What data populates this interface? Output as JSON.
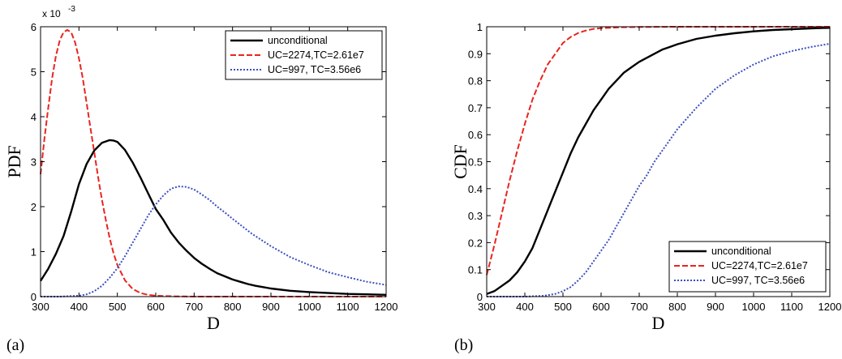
{
  "chart_data": [
    {
      "type": "line",
      "caption": "(a)",
      "xlabel": "D",
      "ylabel": "PDF",
      "y_multiplier": "x 10",
      "y_multiplier_exp": "-3",
      "xlim": [
        300,
        1200
      ],
      "ylim": [
        0,
        6
      ],
      "xticks": [
        "300",
        "400",
        "500",
        "600",
        "700",
        "800",
        "900",
        "1000",
        "1100",
        "1200"
      ],
      "yticks": [
        "0",
        "1",
        "2",
        "3",
        "4",
        "5",
        "6"
      ],
      "legend_position": "top-right",
      "series": [
        {
          "name": "unconditional",
          "color": "#000000",
          "dash": "solid",
          "x": [
            300,
            320,
            340,
            360,
            380,
            400,
            420,
            440,
            460,
            480,
            490,
            500,
            520,
            540,
            560,
            580,
            600,
            620,
            640,
            660,
            680,
            700,
            720,
            740,
            760,
            780,
            800,
            820,
            840,
            860,
            880,
            900,
            950,
            1000,
            1050,
            1100,
            1150,
            1200
          ],
          "y": [
            0.35,
            0.62,
            0.95,
            1.35,
            1.9,
            2.5,
            2.95,
            3.25,
            3.42,
            3.48,
            3.47,
            3.44,
            3.26,
            2.98,
            2.65,
            2.3,
            1.95,
            1.7,
            1.42,
            1.2,
            1.02,
            0.86,
            0.73,
            0.62,
            0.52,
            0.45,
            0.38,
            0.33,
            0.28,
            0.24,
            0.21,
            0.18,
            0.13,
            0.1,
            0.08,
            0.06,
            0.05,
            0.04
          ]
        },
        {
          "name": "UC=2274,TC=2.61e7",
          "color": "#e8251f",
          "dash": "dashed",
          "x": [
            300,
            310,
            320,
            330,
            340,
            350,
            360,
            370,
            380,
            390,
            400,
            410,
            420,
            430,
            440,
            450,
            460,
            470,
            480,
            490,
            500,
            520,
            540,
            560,
            580,
            600,
            650,
            700,
            800,
            1000,
            1200
          ],
          "y": [
            2.72,
            3.5,
            4.2,
            4.85,
            5.35,
            5.7,
            5.88,
            5.93,
            5.87,
            5.65,
            5.3,
            4.85,
            4.3,
            3.75,
            3.2,
            2.65,
            2.15,
            1.7,
            1.3,
            0.97,
            0.7,
            0.36,
            0.17,
            0.08,
            0.04,
            0.02,
            0.005,
            0,
            0,
            0,
            0
          ]
        },
        {
          "name": "UC=997, TC=3.56e6",
          "color": "#3b4fbf",
          "dash": "dotted",
          "x": [
            300,
            350,
            400,
            420,
            440,
            460,
            480,
            500,
            520,
            540,
            560,
            580,
            600,
            620,
            640,
            660,
            680,
            700,
            720,
            740,
            760,
            780,
            800,
            850,
            900,
            950,
            1000,
            1050,
            1100,
            1150,
            1200
          ],
          "y": [
            0,
            0,
            0.02,
            0.05,
            0.12,
            0.24,
            0.42,
            0.63,
            0.9,
            1.2,
            1.5,
            1.8,
            2.05,
            2.25,
            2.4,
            2.45,
            2.44,
            2.38,
            2.27,
            2.15,
            2.0,
            1.87,
            1.73,
            1.4,
            1.12,
            0.88,
            0.7,
            0.54,
            0.43,
            0.33,
            0.26
          ]
        }
      ]
    },
    {
      "type": "line",
      "caption": "(b)",
      "xlabel": "D",
      "ylabel": "CDF",
      "xlim": [
        300,
        1200
      ],
      "ylim": [
        0,
        1
      ],
      "xticks": [
        "300",
        "400",
        "500",
        "600",
        "700",
        "800",
        "900",
        "1000",
        "1100",
        "1200"
      ],
      "yticks": [
        "0",
        "0.1",
        "0.2",
        "0.3",
        "0.4",
        "0.5",
        "0.6",
        "0.7",
        "0.8",
        "0.9",
        "1"
      ],
      "legend_position": "bottom-right",
      "series": [
        {
          "name": "unconditional",
          "color": "#000000",
          "dash": "solid",
          "x": [
            300,
            320,
            340,
            360,
            380,
            400,
            420,
            440,
            460,
            480,
            500,
            520,
            540,
            560,
            580,
            600,
            620,
            640,
            660,
            680,
            700,
            720,
            740,
            760,
            780,
            800,
            850,
            900,
            950,
            1000,
            1050,
            1100,
            1150,
            1200
          ],
          "y": [
            0.01,
            0.02,
            0.04,
            0.06,
            0.09,
            0.13,
            0.18,
            0.25,
            0.32,
            0.39,
            0.46,
            0.53,
            0.59,
            0.64,
            0.69,
            0.73,
            0.77,
            0.8,
            0.83,
            0.85,
            0.87,
            0.885,
            0.9,
            0.915,
            0.925,
            0.935,
            0.955,
            0.967,
            0.976,
            0.983,
            0.988,
            0.991,
            0.994,
            0.996
          ]
        },
        {
          "name": "UC=2274,TC=2.61e7",
          "color": "#e8251f",
          "dash": "dashed",
          "x": [
            300,
            320,
            340,
            360,
            380,
            400,
            420,
            440,
            460,
            480,
            500,
            520,
            540,
            560,
            580,
            600,
            650,
            700,
            800,
            1000,
            1200
          ],
          "y": [
            0.08,
            0.19,
            0.31,
            0.43,
            0.54,
            0.64,
            0.73,
            0.8,
            0.86,
            0.9,
            0.94,
            0.962,
            0.977,
            0.986,
            0.992,
            0.995,
            0.998,
            0.999,
            1,
            1,
            1
          ]
        },
        {
          "name": "UC=997, TC=3.56e6",
          "color": "#3b4fbf",
          "dash": "dotted",
          "x": [
            300,
            350,
            400,
            450,
            480,
            500,
            520,
            540,
            560,
            580,
            600,
            620,
            640,
            660,
            680,
            700,
            720,
            740,
            760,
            780,
            800,
            850,
            900,
            950,
            1000,
            1050,
            1100,
            1150,
            1200
          ],
          "y": [
            0,
            0,
            0,
            0.003,
            0.01,
            0.02,
            0.035,
            0.06,
            0.09,
            0.13,
            0.17,
            0.21,
            0.26,
            0.31,
            0.36,
            0.41,
            0.45,
            0.5,
            0.54,
            0.58,
            0.62,
            0.7,
            0.77,
            0.82,
            0.86,
            0.89,
            0.91,
            0.925,
            0.937
          ]
        }
      ]
    }
  ]
}
